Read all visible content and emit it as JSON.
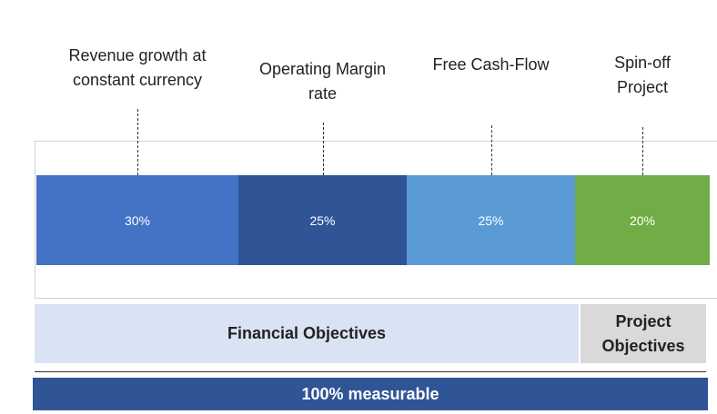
{
  "chart_data": {
    "type": "stacked-bar",
    "xlim": [
      0,
      100
    ],
    "series": [
      {
        "name": "Revenue growth at constant currency",
        "color": "#4472c4",
        "values": [
          30
        ],
        "value_labels": [
          "30%"
        ]
      },
      {
        "name": "Operating Margin rate",
        "color": "#2f5597",
        "values": [
          25
        ],
        "value_labels": [
          "25%"
        ]
      },
      {
        "name": "Free Cash-Flow",
        "color": "#5b9bd5",
        "values": [
          25
        ],
        "value_labels": [
          "25%"
        ]
      },
      {
        "name": "Spin-off Project",
        "color": "#70ad47",
        "values": [
          20
        ],
        "value_labels": [
          "20%"
        ]
      }
    ],
    "groups": [
      "Financial Objectives",
      "Project Objectives"
    ],
    "footer": "100% measurable"
  }
}
